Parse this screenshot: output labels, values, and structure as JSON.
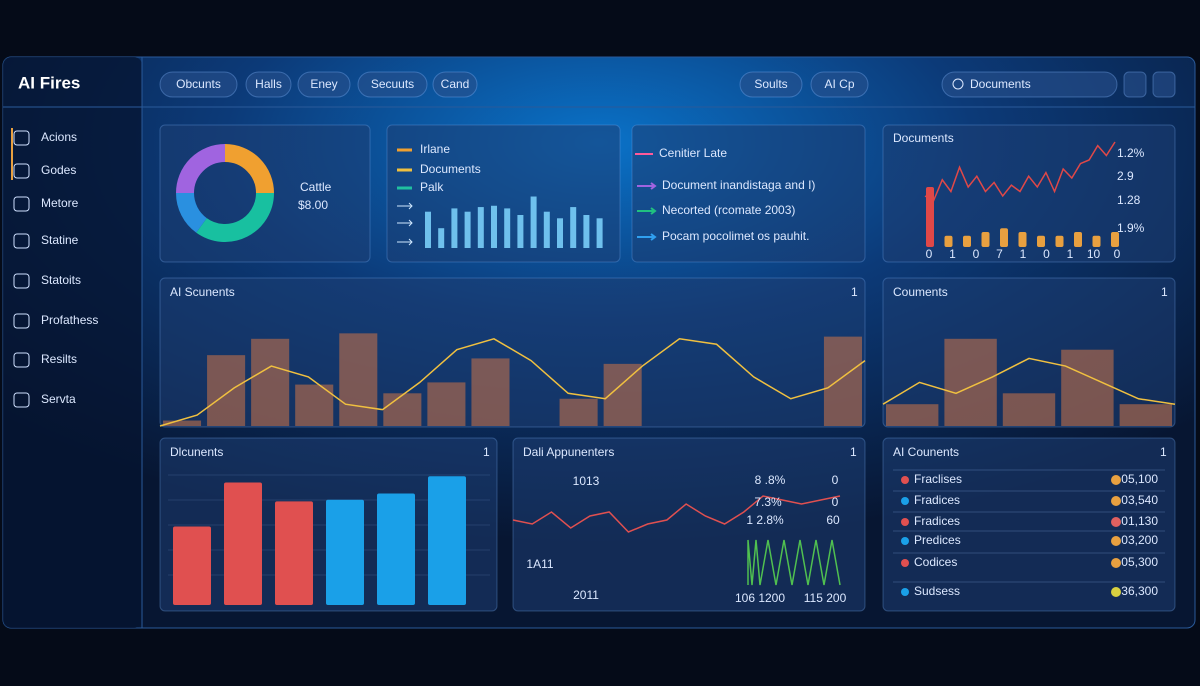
{
  "brand": "AI Fires",
  "nav": [
    "Obcunts",
    "Halls",
    "Eney",
    "Secuuts",
    "Cand"
  ],
  "actions": [
    "Soults",
    "AI Cp"
  ],
  "search": "Documents",
  "sidebar": [
    "Acions",
    "Godes",
    "Metore",
    "Statine",
    "Statoits",
    "Profathess",
    "Resilts",
    "Servta"
  ],
  "summary": {
    "label": "Cattle",
    "value": "$8.00",
    "donut": {
      "values": [
        25,
        35,
        15,
        25
      ],
      "colors": [
        "#f0a030",
        "#18c0a0",
        "#2a90e0",
        "#a064e0"
      ]
    }
  },
  "legend_card": {
    "items": [
      {
        "label": "Irlane",
        "color": "#f0a030"
      },
      {
        "label": "Documents",
        "color": "#f0c040"
      },
      {
        "label": "Palk",
        "color": "#20c0a0"
      }
    ],
    "bars": [
      55,
      30,
      60,
      55,
      62,
      64,
      60,
      50,
      78,
      55,
      45,
      62,
      50,
      45
    ],
    "bar_color": "#7fd6ff"
  },
  "notes": {
    "title": "Cenitier Late",
    "items": [
      {
        "text": "Document inandistaga and I)",
        "color": "#a064e0"
      },
      {
        "text": "Necorted (rcomate 2003)",
        "color": "#20c080"
      },
      {
        "text": "Pocam pocolimet os pauhit.",
        "color": "#30a0f0"
      }
    ]
  },
  "documents": {
    "title": "Documents",
    "labels": [
      "1.2%",
      "2.9",
      "1.28",
      "1.9%"
    ],
    "line": [
      40,
      35,
      58,
      45,
      72,
      50,
      62,
      45,
      55,
      40,
      52,
      45,
      62,
      50,
      66,
      45,
      70,
      60,
      76,
      80,
      96,
      85,
      100
    ],
    "line_color": "#e04848",
    "bars": [
      80,
      15,
      15,
      20,
      25,
      20,
      15,
      15,
      20,
      15,
      20
    ],
    "bar_colors": [
      "#e04848",
      "#e8a040"
    ],
    "xlabels": [
      "0",
      "1",
      "0",
      "7",
      "1",
      "0",
      "1",
      "10",
      "0"
    ]
  },
  "scunents": {
    "title": "AI Scunents",
    "badge": "1",
    "bars": [
      5,
      65,
      80,
      38,
      85,
      30,
      40,
      62,
      0,
      25,
      57,
      0,
      0,
      0,
      0,
      82
    ],
    "curve": [
      0,
      10,
      35,
      55,
      45,
      20,
      15,
      40,
      70,
      80,
      60,
      30,
      25,
      55,
      80,
      75,
      45,
      25,
      35,
      60
    ],
    "bar_color": "#c0704a",
    "curve_color": "#f0c040"
  },
  "couments": {
    "title": "Couments",
    "badge": "1",
    "bars": [
      20,
      80,
      30,
      70,
      20
    ],
    "curve": [
      20,
      40,
      30,
      45,
      62,
      55,
      40,
      25,
      20
    ],
    "bar_color": "#c0704a",
    "curve_color": "#f0c040"
  },
  "dlcunents": {
    "title": "Dlcunents",
    "badge": "1",
    "bars": [
      50,
      78,
      66,
      67,
      71,
      82
    ],
    "colors": [
      "#e05050",
      "#e05050",
      "#e05050",
      "#1aa0e8",
      "#1aa0e8",
      "#1aa0e8"
    ]
  },
  "appunenters": {
    "title": "Dali Appunenters",
    "badge": "1",
    "line": [
      50,
      45,
      60,
      40,
      55,
      60,
      35,
      45,
      50,
      70,
      55,
      45,
      60,
      80,
      75,
      70,
      75,
      80
    ],
    "line_color": "#e05050",
    "labels": [
      "1013",
      "8 .8%",
      "0",
      "7.3%",
      "0",
      "1 2.8%",
      "60",
      "1A11",
      "2011",
      "106 1200",
      "115 200"
    ]
  },
  "counents": {
    "title": "AI Counents",
    "badge": "1",
    "rows": [
      {
        "name": "Fraclises",
        "value": "05,100",
        "dot": "#e05050",
        "status": "#e8a040"
      },
      {
        "name": "Fradices",
        "value": "03,540",
        "dot": "#1aa0e8",
        "status": "#e8a040"
      },
      {
        "name": "Fradices",
        "value": "01,130",
        "dot": "#e05050",
        "status": "#e06060"
      },
      {
        "name": "Predices",
        "value": "03,200",
        "dot": "#1aa0e8",
        "status": "#e8a040"
      },
      {
        "name": "Codices",
        "value": "05,300",
        "dot": "#e05050",
        "status": "#e8a040"
      },
      {
        "name": "Sudsess",
        "value": "36,300",
        "dot": "#1aa0e8",
        "status": "#d8d040"
      }
    ]
  }
}
